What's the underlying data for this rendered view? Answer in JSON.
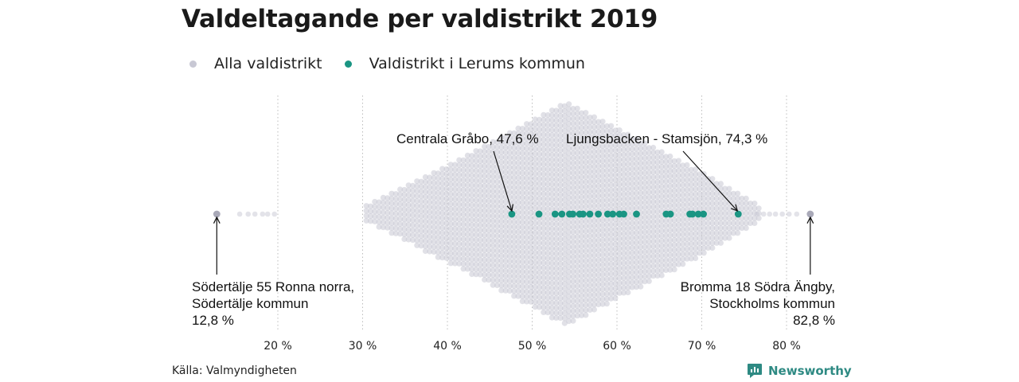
{
  "title": "Valdeltagande per valdistrikt 2019",
  "legend": [
    {
      "label": "Alla valdistrikt",
      "color": "#c8c8d4"
    },
    {
      "label": "Valdistrikt i Lerums kommun",
      "color": "#1a9583"
    }
  ],
  "source": "Källa: Valmyndigheten",
  "brand": {
    "name": "Newsworthy",
    "icon": "newsworthy-logo-icon",
    "color": "#2e8a83"
  },
  "chart_data": {
    "type": "beeswarm",
    "x_axis": {
      "min": 10,
      "max": 85,
      "ticks": [
        20,
        30,
        40,
        50,
        60,
        70,
        80
      ],
      "tick_labels": [
        "20 %",
        "30 %",
        "40 %",
        "50 %",
        "60 %",
        "70 %",
        "80 %"
      ],
      "grid": "dotted vertical"
    },
    "series": [
      {
        "name": "Alla valdistrikt",
        "color": "#c8c8d4",
        "distribution": "dense beeswarm of all districts, range 12.8–82.8 %, peak near 54 %",
        "min": 12.8,
        "max": 82.8,
        "peak": 54
      },
      {
        "name": "Valdistrikt i Lerums kommun",
        "color": "#1a9583",
        "values": [
          47.6,
          50.8,
          52.7,
          53.5,
          54.4,
          54.8,
          55.6,
          56.0,
          56.8,
          57.8,
          58.9,
          59.5,
          60.3,
          60.8,
          62.3,
          65.8,
          66.3,
          68.6,
          68.9,
          69.6,
          70.2,
          74.3
        ]
      }
    ],
    "annotations": [
      {
        "lines": [
          "Centrala Gråbo, 47,6 %"
        ],
        "value": 47.6,
        "position": "above"
      },
      {
        "lines": [
          "Ljungsbacken - Stamsjön, 74,3 %"
        ],
        "value": 74.3,
        "position": "above"
      },
      {
        "lines": [
          "Södertälje 55 Ronna norra,",
          "Södertälje kommun",
          "12,8 %"
        ],
        "value": 12.8,
        "position": "below-left"
      },
      {
        "lines": [
          "Bromma 18 Södra Ängby,",
          "Stockholms kommun",
          "82,8 %"
        ],
        "value": 82.8,
        "position": "below-right"
      }
    ]
  }
}
